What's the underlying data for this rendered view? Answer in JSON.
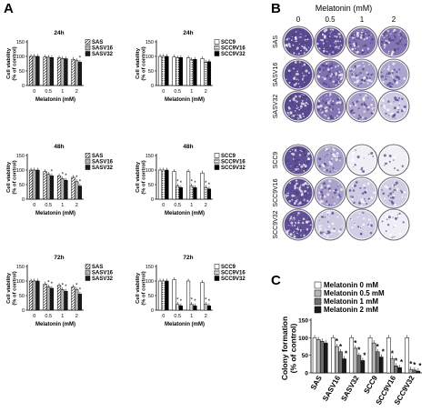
{
  "panels": {
    "A": "A",
    "B": "B",
    "C": "C"
  },
  "viability_axes": {
    "ylabel": "Cell viability\n(% of control)",
    "xlabel": "Melatonin (mM)",
    "yticks": [
      "0",
      "50",
      "100",
      "150"
    ],
    "xticks": [
      "0",
      "0.5",
      "1",
      "2"
    ]
  },
  "legends": {
    "sas": [
      "SAS",
      "SASV16",
      "SASV32"
    ],
    "scc": [
      "SCC9",
      "SCC9V16",
      "SCC9V32"
    ]
  },
  "chart_data": [
    {
      "type": "bar",
      "panel": "A",
      "time": "24h",
      "categories": [
        "0",
        "0.5",
        "1",
        "2"
      ],
      "ylim": [
        0,
        150
      ],
      "series": [
        {
          "name": "SAS",
          "values": [
            100,
            98,
            95,
            90
          ]
        },
        {
          "name": "SASV16",
          "values": [
            100,
            97,
            93,
            85
          ]
        },
        {
          "name": "SASV32",
          "values": [
            100,
            96,
            92,
            80
          ]
        }
      ],
      "stars": [
        [],
        [],
        [],
        [
          2
        ]
      ]
    },
    {
      "type": "bar",
      "panel": "A",
      "time": "24h",
      "categories": [
        "0",
        "0.5",
        "1",
        "2"
      ],
      "ylim": [
        0,
        150
      ],
      "series": [
        {
          "name": "SCC9",
          "values": [
            100,
            98,
            95,
            92
          ]
        },
        {
          "name": "SCC9V16",
          "values": [
            100,
            95,
            88,
            80
          ]
        },
        {
          "name": "SCC9V32",
          "values": [
            100,
            96,
            90,
            82
          ]
        }
      ],
      "stars": [
        [],
        [],
        [],
        []
      ]
    },
    {
      "type": "bar",
      "panel": "A",
      "time": "48h",
      "categories": [
        "0",
        "0.5",
        "1",
        "2"
      ],
      "ylim": [
        0,
        150
      ],
      "series": [
        {
          "name": "SAS",
          "values": [
            100,
            95,
            80,
            75
          ]
        },
        {
          "name": "SASV16",
          "values": [
            100,
            85,
            70,
            60
          ]
        },
        {
          "name": "SASV32",
          "values": [
            100,
            80,
            65,
            45
          ]
        }
      ],
      "stars": [
        [],
        [
          2
        ],
        [
          1,
          2
        ],
        [
          1,
          2
        ]
      ]
    },
    {
      "type": "bar",
      "panel": "A",
      "time": "48h",
      "categories": [
        "0",
        "0.5",
        "1",
        "2"
      ],
      "ylim": [
        0,
        150
      ],
      "series": [
        {
          "name": "SCC9",
          "values": [
            100,
            95,
            95,
            90
          ]
        },
        {
          "name": "SCC9V16",
          "values": [
            100,
            45,
            45,
            40
          ]
        },
        {
          "name": "SCC9V32",
          "values": [
            100,
            40,
            40,
            35
          ]
        }
      ],
      "stars": [
        [],
        [
          1,
          2
        ],
        [
          1,
          2
        ],
        [
          1,
          2
        ]
      ]
    },
    {
      "type": "bar",
      "panel": "A",
      "time": "72h",
      "categories": [
        "0",
        "0.5",
        "1",
        "2"
      ],
      "ylim": [
        0,
        150
      ],
      "series": [
        {
          "name": "SAS",
          "values": [
            100,
            90,
            85,
            80
          ]
        },
        {
          "name": "SASV16",
          "values": [
            100,
            80,
            70,
            70
          ]
        },
        {
          "name": "SASV32",
          "values": [
            100,
            75,
            65,
            55
          ]
        }
      ],
      "stars": [
        [],
        [
          1,
          2
        ],
        [
          1,
          2
        ],
        [
          1,
          2
        ]
      ]
    },
    {
      "type": "bar",
      "panel": "A",
      "time": "72h",
      "categories": [
        "0",
        "0.5",
        "1",
        "2"
      ],
      "ylim": [
        0,
        150
      ],
      "series": [
        {
          "name": "SCC9",
          "values": [
            100,
            105,
            100,
            95
          ]
        },
        {
          "name": "SCC9V16",
          "values": [
            100,
            20,
            20,
            20
          ]
        },
        {
          "name": "SCC9V32",
          "values": [
            100,
            15,
            15,
            15
          ]
        }
      ],
      "stars": [
        [],
        [
          1,
          2
        ],
        [
          1,
          2
        ],
        [
          1,
          2
        ]
      ]
    },
    {
      "type": "bar",
      "panel": "C",
      "ylabel": "Colony formation\n(% of control)",
      "ylim": [
        0,
        150
      ],
      "yticks": [
        "0",
        "50",
        "100",
        "150"
      ],
      "categories": [
        "SAS",
        "SASV16",
        "SASV32",
        "SCC9",
        "SCC9V16",
        "SCC9V32"
      ],
      "series": [
        {
          "name": "Melatonin 0 mM",
          "values": [
            100,
            100,
            100,
            100,
            100,
            100
          ]
        },
        {
          "name": "Melatonin 0.5 mM",
          "values": [
            95,
            75,
            70,
            85,
            40,
            10
          ]
        },
        {
          "name": "Melatonin 1 mM",
          "values": [
            90,
            60,
            50,
            60,
            20,
            8
          ]
        },
        {
          "name": "Melatonin 2 mM",
          "values": [
            85,
            40,
            35,
            45,
            15,
            5
          ]
        }
      ],
      "stars": [
        [],
        [
          1,
          2,
          3
        ],
        [
          1,
          2,
          3
        ],
        [
          2,
          3
        ],
        [
          1,
          2,
          3
        ],
        [
          1,
          2,
          3
        ]
      ]
    }
  ],
  "colony_wells": {
    "title": "Melatonin (mM)",
    "doses": [
      "0",
      "0.5",
      "1",
      "2"
    ],
    "rows": [
      "SAS",
      "SASV16",
      "SASV32",
      "SCC9",
      "SCC9V16",
      "SCC9V32"
    ],
    "stain_colors": [
      "#4e3d88",
      "#6a5aa2",
      "#8a80b8",
      "#b8b2d4",
      "#e6e4ee"
    ],
    "density": [
      [
        0.95,
        0.9,
        0.75,
        0.7
      ],
      [
        0.95,
        0.75,
        0.55,
        0.4
      ],
      [
        0.95,
        0.7,
        0.45,
        0.35
      ],
      [
        0.85,
        0.5,
        0.08,
        0.05
      ],
      [
        0.9,
        0.45,
        0.3,
        0.25
      ],
      [
        0.85,
        0.35,
        0.2,
        0.15
      ]
    ]
  },
  "star_symbol": "*"
}
